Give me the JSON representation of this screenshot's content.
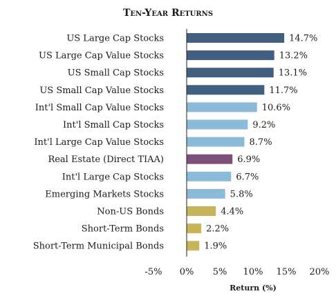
{
  "chart_data": {
    "type": "bar",
    "orientation": "horizontal",
    "title": "Ten-Year Returns",
    "xlabel": "Return (%)",
    "ylabel": "",
    "xlim": [
      -5,
      20
    ],
    "ticks": [
      -5,
      0,
      5,
      10,
      15,
      20
    ],
    "tick_labels": [
      "-5%",
      "0%",
      "5%",
      "10%",
      "15%",
      "20%"
    ],
    "grid": false,
    "legend": "none",
    "categories": [
      "US Large Cap Stocks",
      "US Large Cap Value Stocks",
      "US Small Cap Stocks",
      "US Small Cap Value Stocks",
      "Int'l Small Cap Value Stocks",
      "Int'l Small Cap Stocks",
      "Int'l Large Cap Value Stocks",
      "Real Estate (Direct TIAA)",
      "Int'l Large Cap Stocks",
      "Emerging Markets Stocks",
      "Non-US Bonds",
      "Short-Term Bonds",
      "Short-Term Municipal Bonds"
    ],
    "values": [
      14.7,
      13.2,
      13.1,
      11.7,
      10.6,
      9.2,
      8.7,
      6.9,
      6.7,
      5.8,
      4.4,
      2.2,
      1.9
    ],
    "value_labels": [
      "14.7%",
      "13.2%",
      "13.1%",
      "11.7%",
      "10.6%",
      "9.2%",
      "8.7%",
      "6.9%",
      "6.7%",
      "5.8%",
      "4.4%",
      "2.2%",
      "1.9%"
    ],
    "colors": [
      "#41607f",
      "#41607f",
      "#41607f",
      "#41607f",
      "#8cbad9",
      "#8cbad9",
      "#8cbad9",
      "#7e5079",
      "#8cbad9",
      "#8cbad9",
      "#c8b45a",
      "#c8b45a",
      "#c8b45a"
    ]
  }
}
